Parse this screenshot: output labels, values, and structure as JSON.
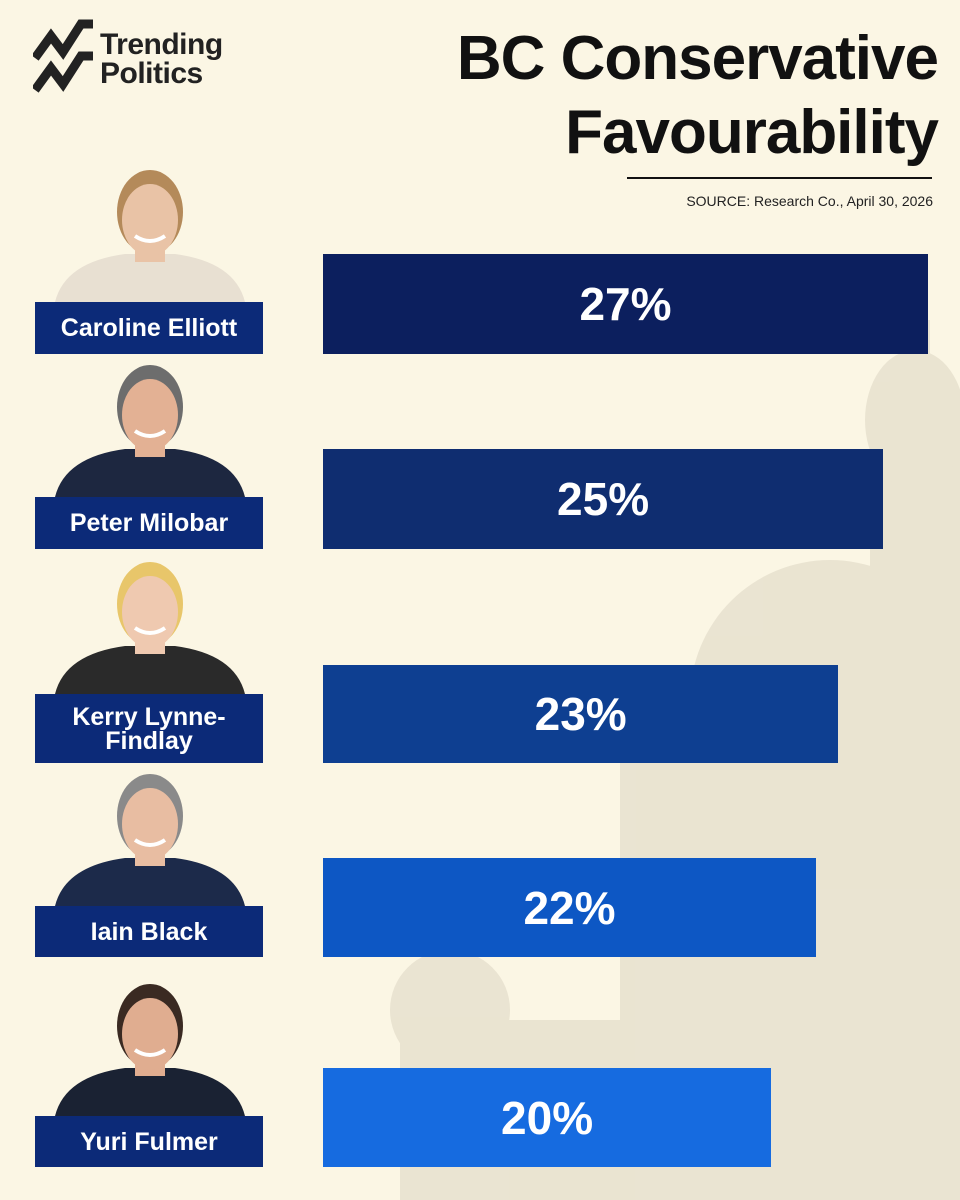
{
  "logo": {
    "lines": [
      "Trending",
      "Politics"
    ]
  },
  "chart_data": {
    "type": "bar",
    "orientation": "horizontal",
    "title": "BC Conservative Favourability",
    "source": "SOURCE: Research Co., April 30, 2026",
    "categories": [
      "Caroline Elliott",
      "Peter Milobar",
      "Kerry Lynne-Findlay",
      "Iain Black",
      "Yuri Fulmer"
    ],
    "values": [
      27,
      25,
      23,
      22,
      20
    ],
    "value_labels": [
      "27%",
      "25%",
      "23%",
      "22%",
      "20%"
    ],
    "colors": [
      "#0c1f5e",
      "#0f2d70",
      "#0e3f91",
      "#0d57c4",
      "#166be0"
    ]
  }
}
